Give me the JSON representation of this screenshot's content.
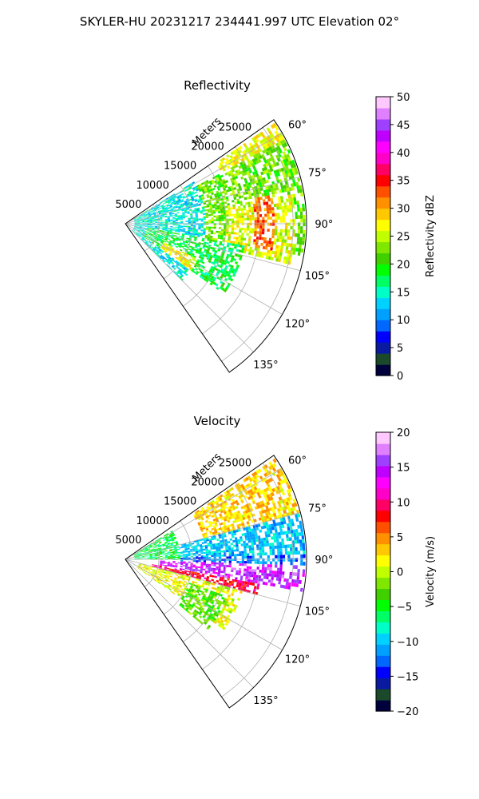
{
  "figure": {
    "suptitle": "SKYLER-HU  20231217  234441.997 UTC Elevation 02°"
  },
  "chart_data": [
    {
      "type": "heatmap",
      "projection": "polar-sector",
      "title": "Reflectivity",
      "range_axis_label": "Meters",
      "range_ticks": [
        "5000",
        "10000",
        "15000",
        "20000",
        "25000"
      ],
      "range_tick_values": [
        5000,
        10000,
        15000,
        20000,
        25000
      ],
      "azimuth_ticks": [
        "60°",
        "75°",
        "90°",
        "105°",
        "120°",
        "135°"
      ],
      "azimuth_tick_values": [
        60,
        75,
        90,
        105,
        120,
        135
      ],
      "azimuth_range": [
        55,
        145
      ],
      "rlim": [
        0,
        27000
      ],
      "grid": true,
      "colorbar": {
        "label": "Reflectivity dBZ",
        "range": [
          0,
          50
        ],
        "ticks": [
          "0",
          "5",
          "10",
          "15",
          "20",
          "25",
          "30",
          "35",
          "40",
          "45",
          "50"
        ],
        "tick_values": [
          0,
          5,
          10,
          15,
          20,
          25,
          30,
          35,
          40,
          45,
          50
        ],
        "colors": [
          "#00003c",
          "#1a4a2a",
          "#0a1aa0",
          "#0000ff",
          "#0068ff",
          "#00a0ff",
          "#00d2ff",
          "#00ffc8",
          "#00ff64",
          "#00ff00",
          "#40d000",
          "#80e800",
          "#c0ff00",
          "#ffff00",
          "#ffc800",
          "#ff9000",
          "#ff5000",
          "#ff0000",
          "#ff0064",
          "#ff00c8",
          "#ff00ff",
          "#c000ff",
          "#a040ff",
          "#e080ff",
          "#ffc8ff"
        ]
      },
      "echo_regions": [
        {
          "az": [
            56,
            80
          ],
          "r": [
            16000,
            26500
          ],
          "value": 27
        },
        {
          "az": [
            62,
            100
          ],
          "r": [
            9000,
            26500
          ],
          "value": 22
        },
        {
          "az": [
            80,
            103
          ],
          "r": [
            15000,
            25000
          ],
          "value": 26
        },
        {
          "az": [
            58,
            135
          ],
          "r": [
            1200,
            12000
          ],
          "value": 14
        },
        {
          "az": [
            100,
            125
          ],
          "r": [
            3000,
            18000
          ],
          "value": 18
        },
        {
          "az": [
            115,
            125
          ],
          "r": [
            6000,
            12000
          ],
          "value": 27
        },
        {
          "az": [
            78,
            100
          ],
          "r": [
            19000,
            22000
          ],
          "value": 32
        }
      ]
    },
    {
      "type": "heatmap",
      "projection": "polar-sector",
      "title": "Velocity",
      "range_axis_label": "Meters",
      "range_ticks": [
        "5000",
        "10000",
        "15000",
        "20000",
        "25000"
      ],
      "range_tick_values": [
        5000,
        10000,
        15000,
        20000,
        25000
      ],
      "azimuth_ticks": [
        "60°",
        "75°",
        "90°",
        "105°",
        "120°",
        "135°"
      ],
      "azimuth_tick_values": [
        60,
        75,
        90,
        105,
        120,
        135
      ],
      "azimuth_range": [
        55,
        145
      ],
      "rlim": [
        0,
        27000
      ],
      "grid": true,
      "colorbar": {
        "label": "Velocity (m/s)",
        "range": [
          -20,
          20
        ],
        "ticks": [
          "−20",
          "−15",
          "−10",
          "−5",
          "0",
          "5",
          "10",
          "15",
          "20"
        ],
        "tick_values": [
          -20,
          -15,
          -10,
          -5,
          0,
          5,
          10,
          15,
          20
        ],
        "colors": [
          "#00003c",
          "#1a4a2a",
          "#0a1aa0",
          "#0000ff",
          "#0068ff",
          "#00a0ff",
          "#00d2ff",
          "#00ffc8",
          "#00ff64",
          "#00ff00",
          "#40d000",
          "#80e800",
          "#c0ff00",
          "#ffff00",
          "#ffc800",
          "#ff9000",
          "#ff5000",
          "#ff0000",
          "#ff0064",
          "#ff00c8",
          "#ff00ff",
          "#c000ff",
          "#a040ff",
          "#e080ff",
          "#ffc8ff"
        ]
      },
      "echo_regions": [
        {
          "az": [
            56,
            75
          ],
          "r": [
            12000,
            26500
          ],
          "value": 3
        },
        {
          "az": [
            75,
            88
          ],
          "r": [
            8000,
            26500
          ],
          "value": -10
        },
        {
          "az": [
            88,
            92
          ],
          "r": [
            8000,
            26500
          ],
          "value": -12
        },
        {
          "az": [
            92,
            100
          ],
          "r": [
            5000,
            26500
          ],
          "value": 15
        },
        {
          "az": [
            100,
            105
          ],
          "r": [
            4000,
            20000
          ],
          "value": 9
        },
        {
          "az": [
            105,
            125
          ],
          "r": [
            2000,
            18000
          ],
          "value": 1
        },
        {
          "az": [
            58,
            90
          ],
          "r": [
            1200,
            8000
          ],
          "value": -6
        },
        {
          "az": [
            110,
            130
          ],
          "r": [
            10000,
            16000
          ],
          "value": -3
        }
      ]
    }
  ]
}
